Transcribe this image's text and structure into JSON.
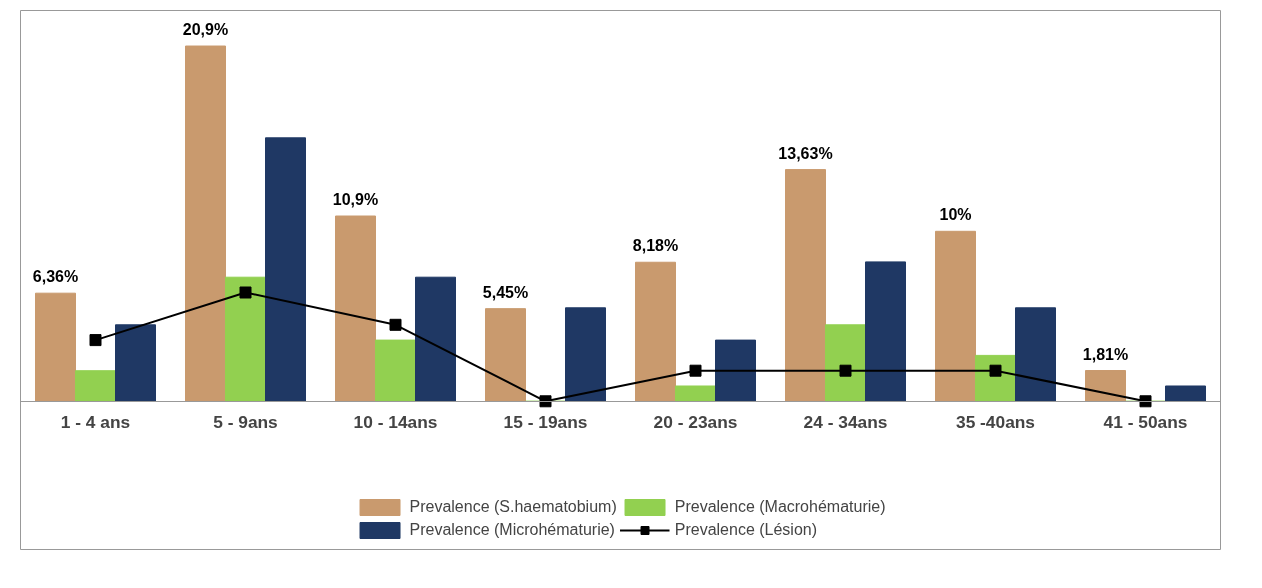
{
  "chart_data": {
    "type": "bar",
    "categories": [
      "1 - 4 ans",
      "5 - 9ans",
      "10 - 14ans",
      "15 - 19ans",
      "20 - 23ans",
      "24 - 34ans",
      "35 -40ans",
      "41 - 50ans"
    ],
    "series": [
      {
        "name": "Prevalence (S.haematobium)",
        "color": "#c99a6e",
        "values": [
          6.36,
          20.9,
          10.9,
          5.45,
          8.18,
          13.63,
          10,
          1.81
        ],
        "value_labels": [
          "6,36%",
          "20,9%",
          "10,9%",
          "5,45%",
          "8,18%",
          "13,63%",
          "10%",
          "1,81%"
        ]
      },
      {
        "name": "Prevalence (Macrohématurie)",
        "color": "#92d050",
        "values": [
          1.8,
          7.3,
          3.6,
          0,
          0.9,
          4.5,
          2.7,
          0
        ]
      },
      {
        "name": "Prevalence (Microhématurie)",
        "color": "#1f3864",
        "values": [
          4.5,
          15.5,
          7.3,
          5.5,
          3.6,
          8.2,
          5.5,
          0.9
        ]
      },
      {
        "name": "Prevalence (Lésion)",
        "type": "line",
        "color": "#000000",
        "marker": "square",
        "values": [
          3.6,
          6.4,
          4.5,
          0,
          1.8,
          1.8,
          1.8,
          0
        ]
      }
    ],
    "legend": "bottom",
    "grid": false
  }
}
